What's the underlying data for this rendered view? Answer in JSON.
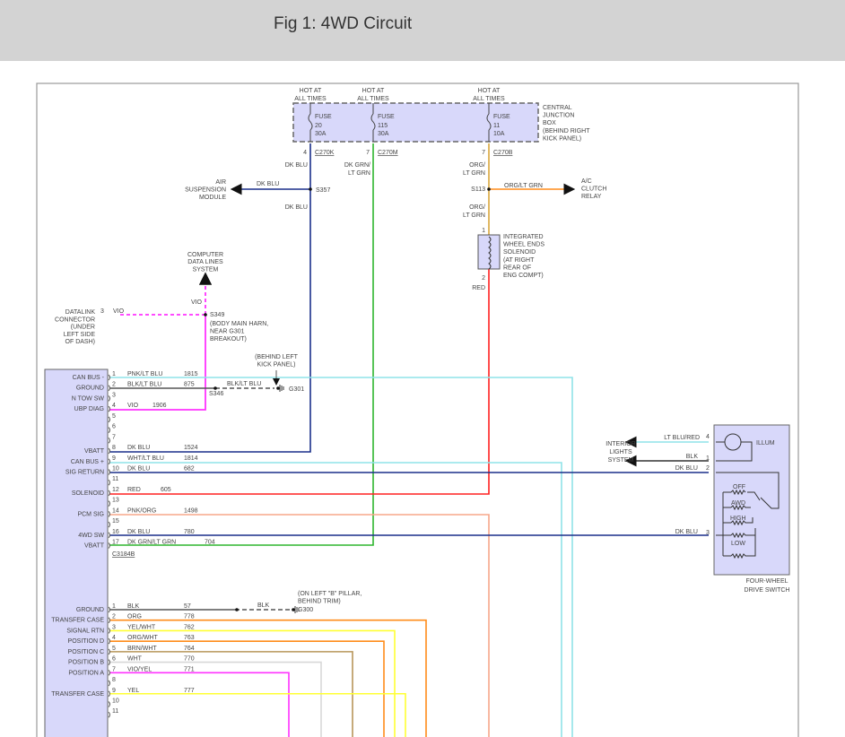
{
  "title": "Fig 1: 4WD Circuit",
  "colors": {
    "dk_blu": "#1a2f8a",
    "green": "#2fb52f",
    "org_lt_grn": "#d9a63c",
    "orange": "#ff8c1a",
    "red": "#ff2020",
    "vio": "#ff33ff",
    "lt_blu": "#8fe3e8",
    "pnk_org": "#f7a78a",
    "blk": "#555555",
    "yel": "#ffff33",
    "brn": "#b8965a",
    "wht": "#d8d8d8",
    "box_fill": "#d8d8fa"
  },
  "fuses": [
    {
      "hot1": "HOT AT",
      "hot2": "ALL TIMES",
      "name": "FUSE",
      "num": "20",
      "amp": "30A",
      "pin": "4",
      "connector": "C270K"
    },
    {
      "hot1": "HOT AT",
      "hot2": "ALL TIMES",
      "name": "FUSE",
      "num": "115",
      "amp": "30A",
      "pin": "7",
      "connector": "C270M"
    },
    {
      "hot1": "HOT AT",
      "hot2": "ALL TIMES",
      "name": "FUSE",
      "num": "11",
      "amp": "10A",
      "pin": "7",
      "connector": "C270B"
    }
  ],
  "junction_box": [
    "CENTRAL",
    "JUNCTION",
    "BOX",
    "(BEHIND RIGHT",
    "KICK PANEL)"
  ],
  "labels": {
    "dk_blu": "DK BLU",
    "dk_grn1": "DK GRN/",
    "lt_grn": "LT GRN",
    "org1": "ORG/",
    "s357": "S357",
    "s113": "S113",
    "org_lt_grn": "ORG/LT GRN",
    "vio": "VIO",
    "red": "RED",
    "s349": "S349",
    "s346": "S346",
    "blk_lt_blu": "BLK/LT BLU",
    "g301": "G301",
    "g300": "G300",
    "blk": "BLK",
    "c3184b": "C3184B",
    "pin1": "1",
    "pin2": "2",
    "pin3": "3",
    "pin4": "4",
    "lt_blu_red": "LT BLU/RED",
    "illum": "ILLUM",
    "off": "OFF",
    "awd": "AWD",
    "high": "HIGH",
    "low": "LOW"
  },
  "air_suspension": [
    "AIR",
    "SUSPENSION",
    "MODULE"
  ],
  "ac_clutch": [
    "A/C",
    "CLUTCH",
    "RELAY"
  ],
  "solenoid": [
    "INTEGRATED",
    "WHEEL ENDS",
    "SOLENOID",
    "(AT RIGHT",
    "REAR OF",
    "ENG COMPT)"
  ],
  "computer": [
    "COMPUTER",
    "DATA LINES",
    "SYSTEM"
  ],
  "datalink": [
    "DATALINK",
    "CONNECTOR",
    "(UNDER",
    "LEFT SIDE",
    "OF DASH)"
  ],
  "s349_note": [
    "(BODY MAIN HARN,",
    "NEAR G301",
    "BREAKOUT)"
  ],
  "g301_note": [
    "(BEHIND LEFT",
    "KICK PANEL)"
  ],
  "g300_note": [
    "(ON LEFT \"B\" PILLAR,",
    "BEHIND TRIM)"
  ],
  "interior": [
    "INTERIOR",
    "LIGHTS",
    "SYSTEM"
  ],
  "switch_name": [
    "FOUR-WHEEL",
    "DRIVE SWITCH"
  ],
  "upper_rows": [
    {
      "pin": "1",
      "func": "CAN BUS -",
      "wire": "PNK/LT BLU",
      "circuit": "1815"
    },
    {
      "pin": "2",
      "func": "GROUND",
      "wire": "BLK/LT BLU",
      "circuit": "875"
    },
    {
      "pin": "3",
      "func": "N TOW SW",
      "wire": "",
      "circuit": ""
    },
    {
      "pin": "4",
      "func": "UBP DIAG",
      "wire": "VIO",
      "circuit": "1906"
    },
    {
      "pin": "5",
      "func": "",
      "wire": "",
      "circuit": ""
    },
    {
      "pin": "6",
      "func": "",
      "wire": "",
      "circuit": ""
    },
    {
      "pin": "7",
      "func": "",
      "wire": "",
      "circuit": ""
    },
    {
      "pin": "8",
      "func": "VBATT",
      "wire": "DK BLU",
      "circuit": "1524"
    },
    {
      "pin": "9",
      "func": "CAN BUS +",
      "wire": "WHT/LT BLU",
      "circuit": "1814"
    },
    {
      "pin": "10",
      "func": "SIG RETURN",
      "wire": "DK BLU",
      "circuit": "682"
    },
    {
      "pin": "11",
      "func": "",
      "wire": "",
      "circuit": ""
    },
    {
      "pin": "12",
      "func": "SOLENOID",
      "wire": "RED",
      "circuit": "605"
    },
    {
      "pin": "13",
      "func": "",
      "wire": "",
      "circuit": ""
    },
    {
      "pin": "14",
      "func": "PCM SIG",
      "wire": "PNK/ORG",
      "circuit": "1498"
    },
    {
      "pin": "15",
      "func": "",
      "wire": "",
      "circuit": ""
    },
    {
      "pin": "16",
      "func": "4WD SW",
      "wire": "DK BLU",
      "circuit": "780"
    },
    {
      "pin": "17",
      "func": "VBATT",
      "wire": "DK GRN/LT GRN",
      "circuit": "704"
    }
  ],
  "lower_rows": [
    {
      "pin": "1",
      "func": "GROUND",
      "wire": "BLK",
      "circuit": "57"
    },
    {
      "pin": "2",
      "func": "TRANSFER CASE",
      "wire": "ORG",
      "circuit": "778"
    },
    {
      "pin": "3",
      "func": "SIGNAL RTN",
      "wire": "YEL/WHT",
      "circuit": "762"
    },
    {
      "pin": "4",
      "func": "POSITION D",
      "wire": "ORG/WHT",
      "circuit": "763"
    },
    {
      "pin": "5",
      "func": "POSITION C",
      "wire": "BRN/WHT",
      "circuit": "764"
    },
    {
      "pin": "6",
      "func": "POSITION B",
      "wire": "WHT",
      "circuit": "770"
    },
    {
      "pin": "7",
      "func": "POSITION A",
      "wire": "VIO/YEL",
      "circuit": "771"
    },
    {
      "pin": "8",
      "func": "",
      "wire": "",
      "circuit": ""
    },
    {
      "pin": "9",
      "func": "TRANSFER CASE",
      "wire": "YEL",
      "circuit": "777"
    },
    {
      "pin": "10",
      "func": "",
      "wire": "",
      "circuit": ""
    },
    {
      "pin": "11",
      "func": "",
      "wire": "",
      "circuit": ""
    }
  ]
}
